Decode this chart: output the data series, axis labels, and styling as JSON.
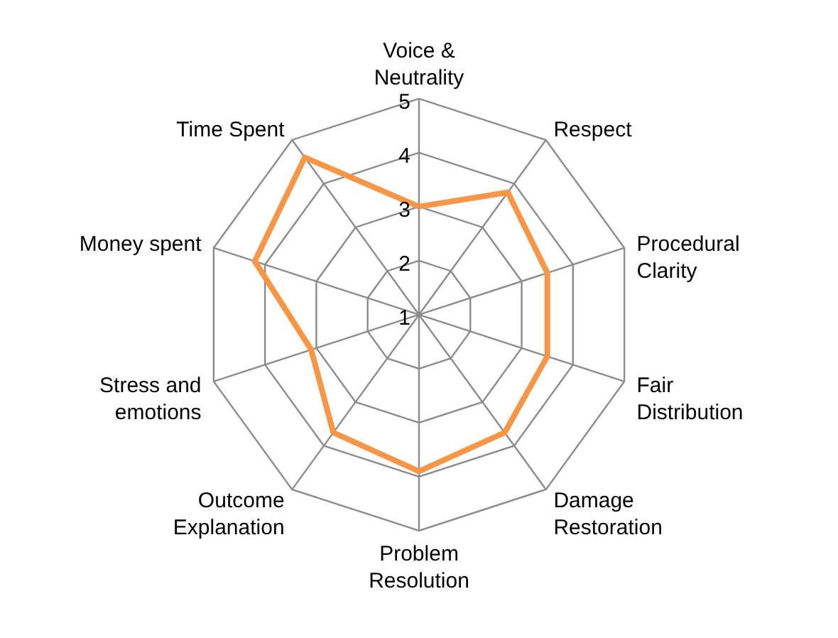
{
  "chart_data": {
    "type": "radar",
    "categories": [
      "Voice & Neutrality",
      "Respect",
      "Procedural Clarity",
      "Fair Distribution",
      "Damage Restoration",
      "Problem Resolution",
      "Outcome Explanation",
      "Stress and emotions",
      "Money spent",
      "Time Spent"
    ],
    "series": [
      {
        "color": "#f79646",
        "values": [
          3.0,
          3.8,
          3.5,
          3.5,
          3.7,
          3.9,
          3.7,
          3.1,
          4.2,
          4.6
        ]
      }
    ],
    "ylim": [
      1,
      5
    ],
    "yticks": [
      1,
      2,
      3,
      4,
      5
    ],
    "grid": true
  }
}
